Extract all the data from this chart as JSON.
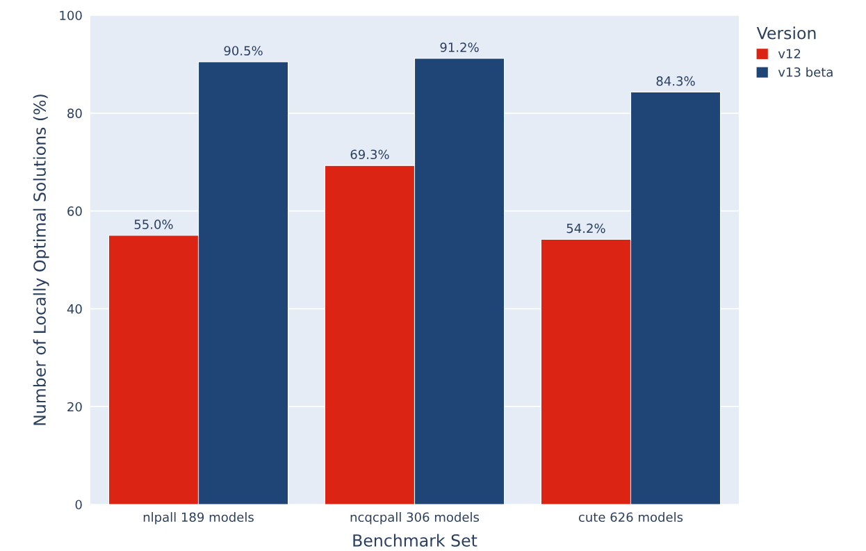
{
  "chart_data": {
    "type": "bar",
    "xlabel": "Benchmark Set",
    "ylabel": "Number of Locally Optimal Solutions (%)",
    "legend_title": "Version",
    "categories": [
      "nlpall 189 models",
      "ncqcpall 306 models",
      "cute 626 models"
    ],
    "series": [
      {
        "name": "v12",
        "color": "#dc2415",
        "values": [
          55.0,
          69.3,
          54.2
        ],
        "value_labels": [
          "55.0%",
          "69.3%",
          "54.2%"
        ]
      },
      {
        "name": "v13 beta",
        "color": "#1f4577",
        "values": [
          90.5,
          91.2,
          84.3
        ],
        "value_labels": [
          "90.5%",
          "91.2%",
          "84.3%"
        ]
      }
    ],
    "ylim": [
      0,
      100
    ],
    "yticks": [
      0,
      20,
      40,
      60,
      80,
      100
    ],
    "grid": "y",
    "legend": "top right"
  }
}
